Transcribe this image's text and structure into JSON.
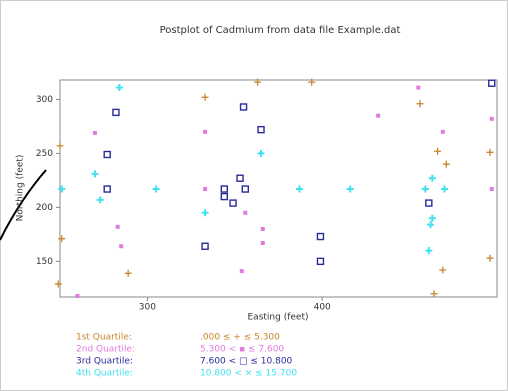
{
  "chart_data": {
    "type": "scatter",
    "title": "Postplot of Cadmium from data file Example.dat",
    "x_label": "Easting  (feet)",
    "y_label": "Northing (feet)",
    "xlim": [
      250,
      500
    ],
    "ylim": [
      117,
      318
    ],
    "xticks": [
      300,
      400
    ],
    "yticks": [
      150,
      200,
      250,
      300
    ],
    "series": [
      {
        "name": "1st Quartile:",
        "range_label": ".000 ≤ + ≤ 5.300",
        "marker": "plus",
        "color": "#c8842a",
        "x": [
          333,
          363,
          394,
          466,
          471,
          456,
          496,
          496,
          251,
          289,
          469,
          464,
          249,
          250
        ],
        "y": [
          302,
          316,
          316,
          252,
          240,
          296,
          251,
          153,
          171,
          139,
          142,
          120,
          129,
          257
        ]
      },
      {
        "name": "2nd Quartile:",
        "range_label": "5.300 < ▪ ≤ 7.600",
        "marker": "dot",
        "color": "#e07ce0",
        "x": [
          270,
          333,
          455,
          469,
          432,
          497,
          497,
          283,
          285,
          366,
          366,
          356,
          333,
          354,
          260
        ],
        "y": [
          269,
          270,
          311,
          270,
          285,
          282,
          217,
          182,
          164,
          180,
          167,
          195,
          217,
          141,
          118
        ]
      },
      {
        "name": "3rd Quartile:",
        "range_label": "7.600 < □ ≤ 10.800",
        "marker": "square",
        "color": "#2a2a9a",
        "x": [
          497,
          282,
          355,
          365,
          277,
          353,
          277,
          344,
          344,
          349,
          356,
          333,
          399,
          399,
          461
        ],
        "y": [
          315,
          288,
          293,
          272,
          249,
          227,
          217,
          217,
          210,
          204,
          217,
          164,
          173,
          150,
          204
        ]
      },
      {
        "name": "4th Quartile:",
        "range_label": "10.800 < × ≤ 15.700",
        "marker": "cross",
        "color": "#40e0f0",
        "x": [
          284,
          365,
          270,
          273,
          251,
          305,
          333,
          387,
          416,
          459,
          470,
          463,
          463,
          462,
          461
        ],
        "y": [
          311,
          250,
          231,
          207,
          217,
          217,
          195,
          217,
          217,
          217,
          217,
          227,
          190,
          184,
          160
        ]
      }
    ]
  }
}
